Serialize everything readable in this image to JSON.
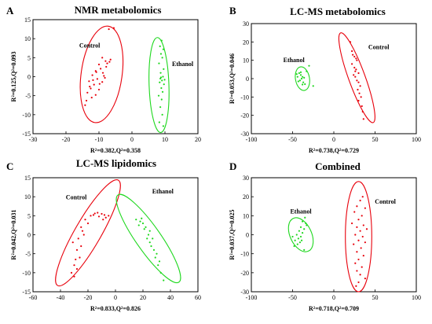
{
  "panels": [
    {
      "letter": "A",
      "title": "NMR metabolomics",
      "xlabel": "R²=0.382,Q²=0.358",
      "ylabel": "R²=0.125,Q²=0.093"
    },
    {
      "letter": "B",
      "title": "LC-MS metabolomics",
      "xlabel": "R²=0.738,Q²=0.729",
      "ylabel": "R²=0.053,Q²=0.046"
    },
    {
      "letter": "C",
      "title": "LC-MS lipidomics",
      "xlabel": "R²=0.833,Q²=0.826",
      "ylabel": "R²=0.042,Q²=0.031"
    },
    {
      "letter": "D",
      "title": "Combined",
      "xlabel": "R²=0.718,Q²=0.709",
      "ylabel": "R²=0.037,Q²=0.025"
    }
  ],
  "colors": {
    "control": "#e8000b",
    "ethanol": "#1ed81e"
  },
  "chart_data": [
    {
      "type": "scatter",
      "title": "NMR metabolomics",
      "xlabel": "R²=0.382,Q²=0.358",
      "ylabel": "R²=0.125,Q²=0.093",
      "xlim": [
        -30,
        20
      ],
      "ylim": [
        -15,
        15
      ],
      "xticks": [
        -30,
        -20,
        -10,
        0,
        10,
        20
      ],
      "yticks": [
        -15,
        -10,
        -5,
        0,
        5,
        10,
        15
      ],
      "series": [
        {
          "name": "Control",
          "ellipse": {
            "cx": -9.2,
            "cy": 0.6,
            "rx": 6.2,
            "ry": 12.8,
            "angle": 8
          },
          "points": [
            [
              -7,
              12.5
            ],
            [
              -5.5,
              12.8
            ],
            [
              -9,
              5
            ],
            [
              -10,
              3.2
            ],
            [
              -8,
              4.1
            ],
            [
              -11,
              1.5
            ],
            [
              -9.5,
              2.1
            ],
            [
              -12,
              0.4
            ],
            [
              -8.5,
              0.2
            ],
            [
              -10.5,
              -0.6
            ],
            [
              -13,
              -1.2
            ],
            [
              -9,
              -1.4
            ],
            [
              -11.5,
              -2.1
            ],
            [
              -12.5,
              -3.1
            ],
            [
              -10,
              -3.4
            ],
            [
              -13.5,
              -4.2
            ],
            [
              -11,
              -4.8
            ],
            [
              -12.2,
              -5.5
            ],
            [
              -13.8,
              -6.3
            ],
            [
              -14.2,
              -7.5
            ],
            [
              -7.5,
              3.5
            ],
            [
              -6.5,
              4.5
            ],
            [
              -8.2,
              -0.3
            ],
            [
              -10.8,
              1.2
            ],
            [
              -12.8,
              -2.6
            ],
            [
              -7.8,
              2.6
            ],
            [
              -9.8,
              -1.9
            ],
            [
              -11.8,
              -0.9
            ],
            [
              -6.8,
              3.9
            ],
            [
              -8.8,
              1.0
            ]
          ]
        },
        {
          "name": "Ethanol",
          "ellipse": {
            "cx": 8.2,
            "cy": -2.2,
            "rx": 3.0,
            "ry": 12.5,
            "angle": -2
          },
          "points": [
            [
              9,
              9.5
            ],
            [
              8.5,
              8
            ],
            [
              9.5,
              7.2
            ],
            [
              8.8,
              6
            ],
            [
              9.2,
              5
            ],
            [
              8.2,
              3.5
            ],
            [
              9.6,
              2
            ],
            [
              8.7,
              1
            ],
            [
              9.4,
              0
            ],
            [
              8.6,
              -0.5
            ],
            [
              9.1,
              -1
            ],
            [
              8.4,
              -1.5
            ],
            [
              9.7,
              -2
            ],
            [
              8.9,
              -3
            ],
            [
              9.3,
              -4
            ],
            [
              8.1,
              -5
            ],
            [
              9,
              -6
            ],
            [
              8.6,
              -8
            ],
            [
              9.2,
              -10
            ],
            [
              8.3,
              -12
            ],
            [
              9.5,
              -13
            ],
            [
              8.8,
              -0.2
            ],
            [
              9.9,
              -0.8
            ]
          ]
        }
      ]
    },
    {
      "type": "scatter",
      "title": "LC-MS metabolomics",
      "xlabel": "R²=0.738,Q²=0.729",
      "ylabel": "R²=0.053,Q²=0.046",
      "xlim": [
        -100,
        100
      ],
      "ylim": [
        -30,
        30
      ],
      "xticks": [
        -100,
        -50,
        0,
        50,
        100
      ],
      "yticks": [
        -30,
        -20,
        -10,
        0,
        10,
        20,
        30
      ],
      "series": [
        {
          "name": "Ethanol",
          "ellipse": {
            "cx": -38,
            "cy": 0,
            "rx": 8.5,
            "ry": 6.5,
            "angle": -10
          },
          "points": [
            [
              -42,
              3
            ],
            [
              -40,
              2
            ],
            [
              -38,
              1
            ],
            [
              -36,
              0.5
            ],
            [
              -44,
              1
            ],
            [
              -41,
              -1
            ],
            [
              -39,
              0
            ],
            [
              -37,
              -2
            ],
            [
              -35,
              -3
            ],
            [
              -33,
              4
            ],
            [
              -43,
              -1.5
            ],
            [
              -40,
              3.5
            ],
            [
              -30,
              7
            ],
            [
              -25,
              -4
            ],
            [
              -38,
              -3.2
            ],
            [
              -45,
              2.5
            ]
          ]
        },
        {
          "name": "Control",
          "ellipse": {
            "cx": 28,
            "cy": 0.5,
            "rx": 10,
            "ry": 26,
            "angle": -20
          },
          "points": [
            [
              20,
              20
            ],
            [
              22,
              15
            ],
            [
              25,
              12
            ],
            [
              28,
              10
            ],
            [
              22,
              8
            ],
            [
              25,
              6
            ],
            [
              27,
              5
            ],
            [
              30,
              3
            ],
            [
              24,
              2
            ],
            [
              26,
              1
            ],
            [
              28,
              -1
            ],
            [
              30,
              -2
            ],
            [
              32,
              -4
            ],
            [
              29,
              -6
            ],
            [
              31,
              -8
            ],
            [
              33,
              -10
            ],
            [
              30,
              -12
            ],
            [
              34,
              -15
            ],
            [
              35,
              -18
            ],
            [
              36,
              -22
            ],
            [
              27,
              11
            ],
            [
              23,
              13
            ],
            [
              26,
              4
            ]
          ]
        }
      ]
    },
    {
      "type": "scatter",
      "title": "LC-MS lipidomics",
      "xlabel": "R²=0.833,Q²=0.826",
      "ylabel": "R²=0.042,Q²=0.031",
      "xlim": [
        -60,
        60
      ],
      "ylim": [
        -15,
        15
      ],
      "xticks": [
        -60,
        -40,
        -20,
        0,
        20,
        40,
        60
      ],
      "yticks": [
        -15,
        -10,
        -5,
        0,
        5,
        10,
        15
      ],
      "series": [
        {
          "name": "Control",
          "ellipse": {
            "cx": -20,
            "cy": 0.5,
            "rx": 9.5,
            "ry": 16,
            "angle": 30
          },
          "points": [
            [
              -5,
              5
            ],
            [
              -8,
              5.2
            ],
            [
              -10,
              5.5
            ],
            [
              -12,
              4.8
            ],
            [
              -15,
              5.6
            ],
            [
              -18,
              5
            ],
            [
              -22,
              4
            ],
            [
              -20,
              3
            ],
            [
              -25,
              2
            ],
            [
              -23,
              0
            ],
            [
              -27,
              -1
            ],
            [
              -25,
              -3
            ],
            [
              -28,
              -4
            ],
            [
              -26,
              -6
            ],
            [
              -30,
              -8
            ],
            [
              -28,
              -9
            ],
            [
              -32,
              -10
            ],
            [
              -30,
              -11
            ],
            [
              -7,
              4.5
            ],
            [
              -9,
              4
            ],
            [
              -16,
              5.2
            ],
            [
              -13,
              5.8
            ],
            [
              -24,
              1
            ],
            [
              -29,
              -6.5
            ],
            [
              -31,
              -2
            ]
          ]
        },
        {
          "name": "Ethanol",
          "ellipse": {
            "cx": 24,
            "cy": -1,
            "rx": 9,
            "ry": 14,
            "angle": -35
          },
          "points": [
            [
              15,
              4
            ],
            [
              18,
              3.5
            ],
            [
              20,
              3
            ],
            [
              22,
              2
            ],
            [
              25,
              1
            ],
            [
              24,
              0
            ],
            [
              27,
              -1
            ],
            [
              26,
              -3
            ],
            [
              28,
              -4
            ],
            [
              30,
              -5
            ],
            [
              29,
              -6
            ],
            [
              31,
              -8
            ],
            [
              33,
              -10
            ],
            [
              35,
              -12
            ],
            [
              17,
              2.5
            ],
            [
              21,
              1.5
            ],
            [
              23,
              -1
            ],
            [
              32,
              -7
            ],
            [
              19,
              4.3
            ],
            [
              25,
              -2
            ]
          ]
        }
      ]
    },
    {
      "type": "scatter",
      "title": "Combined",
      "xlabel": "R²=0.718,Q²=0.709",
      "ylabel": "R²=0.037,Q²=0.025",
      "xlim": [
        -100,
        100
      ],
      "ylim": [
        -30,
        30
      ],
      "xticks": [
        -100,
        -50,
        0,
        50,
        100
      ],
      "yticks": [
        -30,
        -20,
        -10,
        0,
        10,
        20,
        30
      ],
      "series": [
        {
          "name": "Ethanol",
          "ellipse": {
            "cx": -40,
            "cy": 0,
            "rx": 13,
            "ry": 9.5,
            "angle": -25
          },
          "points": [
            [
              -35,
              9
            ],
            [
              -38,
              7
            ],
            [
              -33,
              5
            ],
            [
              -40,
              4
            ],
            [
              -36,
              3
            ],
            [
              -42,
              2
            ],
            [
              -38,
              1
            ],
            [
              -45,
              0
            ],
            [
              -40,
              -1
            ],
            [
              -43,
              -2
            ],
            [
              -47,
              -3
            ],
            [
              -41,
              -4
            ],
            [
              -44,
              -5
            ],
            [
              -48,
              -6
            ],
            [
              -36,
              -8
            ],
            [
              -50,
              -1
            ],
            [
              -34,
              6
            ],
            [
              -39,
              -3
            ]
          ]
        },
        {
          "name": "Control",
          "ellipse": {
            "cx": 30,
            "cy": -1,
            "rx": 16,
            "ry": 29,
            "angle": 0
          },
          "points": [
            [
              35,
              20
            ],
            [
              32,
              18
            ],
            [
              28,
              15
            ],
            [
              38,
              14
            ],
            [
              25,
              12
            ],
            [
              34,
              10
            ],
            [
              30,
              8
            ],
            [
              22,
              6
            ],
            [
              36,
              5
            ],
            [
              28,
              4
            ],
            [
              40,
              3
            ],
            [
              32,
              2
            ],
            [
              26,
              0
            ],
            [
              35,
              -1
            ],
            [
              30,
              -3
            ],
            [
              38,
              -4
            ],
            [
              24,
              -5
            ],
            [
              33,
              -7
            ],
            [
              28,
              -9
            ],
            [
              36,
              -11
            ],
            [
              30,
              -13
            ],
            [
              26,
              -15
            ],
            [
              34,
              -17
            ],
            [
              28,
              -19
            ],
            [
              32,
              -21
            ],
            [
              38,
              -23
            ],
            [
              30,
              -25
            ],
            [
              27,
              -27
            ]
          ]
        }
      ]
    }
  ]
}
